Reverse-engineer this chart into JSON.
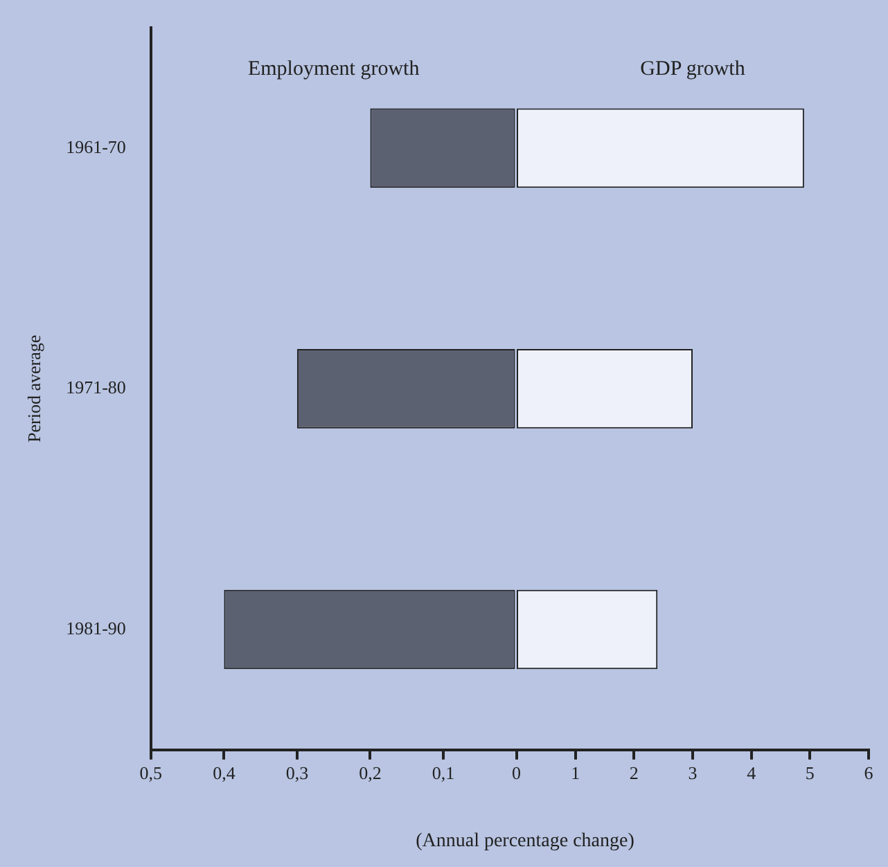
{
  "chart_data": [
    {
      "type": "bar",
      "orientation": "horizontal",
      "title": "Employment growth",
      "ylabel": "Period average",
      "xlabel": "(Annual percentage change)",
      "categories": [
        "1961-70",
        "1971-80",
        "1981-90"
      ],
      "values": [
        0.2,
        0.3,
        0.4
      ],
      "color": "#5c6172",
      "xlim": [
        0.5,
        0
      ],
      "xticks": [
        {
          "value": 0.5,
          "label": "0,5"
        },
        {
          "value": 0.4,
          "label": "0,4"
        },
        {
          "value": 0.3,
          "label": "0,3"
        },
        {
          "value": 0.2,
          "label": "0,2"
        },
        {
          "value": 0.1,
          "label": "0,1"
        },
        0
      ]
    },
    {
      "type": "bar",
      "orientation": "horizontal",
      "title": "GDP growth",
      "categories": [
        "1961-70",
        "1971-80",
        "1981-90"
      ],
      "values": [
        4.9,
        3.0,
        2.4
      ],
      "color": "#eef1fa",
      "xlim": [
        0,
        6
      ],
      "xticks": [
        1,
        2,
        3,
        4,
        5,
        6
      ],
      "tick_labels": "x"
    }
  ]
}
